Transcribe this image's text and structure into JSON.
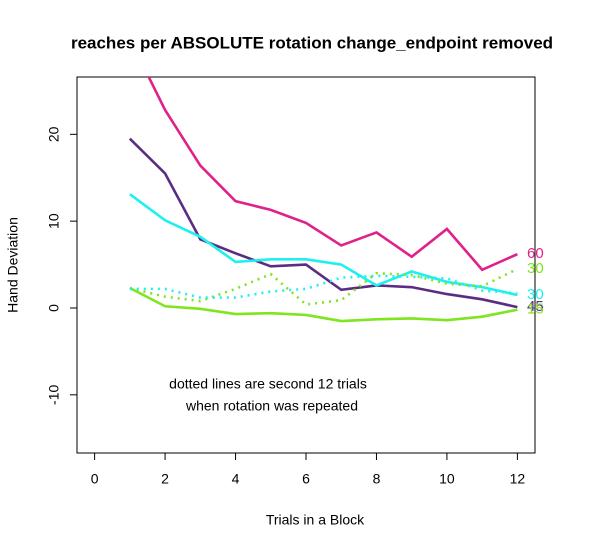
{
  "chart_data": {
    "type": "line",
    "title": "reaches per ABSOLUTE rotation change_endpoint removed",
    "x_label": "Trials in a Block",
    "y_label": "Hand Deviation",
    "x": [
      1,
      2,
      3,
      4,
      5,
      6,
      7,
      8,
      9,
      10,
      11,
      12
    ],
    "series": [
      {
        "name": "60",
        "color": "#e0218a",
        "style": "solid",
        "values": [
          31,
          22.8,
          16.4,
          12.3,
          11.3,
          9.8,
          7.2,
          8.7,
          5.9,
          9.1,
          4.4,
          6.2
        ]
      },
      {
        "name": "45",
        "color": "#5b2c83",
        "style": "solid",
        "values": [
          19.5,
          15.5,
          7.9,
          6.3,
          4.8,
          5.0,
          2.1,
          2.6,
          2.4,
          1.6,
          1.0,
          0.1
        ]
      },
      {
        "name": "30",
        "color": "#1ef0f0",
        "style": "solid",
        "values": [
          13.1,
          10.1,
          8.2,
          5.3,
          5.6,
          5.6,
          5.0,
          2.6,
          4.2,
          3.0,
          2.4,
          1.5
        ]
      },
      {
        "name": "15",
        "color": "#7fe51e",
        "style": "solid",
        "values": [
          2.3,
          0.2,
          -0.1,
          -0.7,
          -0.6,
          -0.8,
          -1.5,
          -1.3,
          -1.2,
          -1.4,
          -1.0,
          -0.2
        ]
      },
      {
        "name": "30",
        "color": "#7fe51e",
        "style": "dotted",
        "values": [
          2.3,
          1.3,
          0.8,
          2.2,
          3.9,
          0.4,
          0.9,
          4.0,
          3.8,
          2.8,
          2.5,
          4.5
        ]
      },
      {
        "color": "#1ef0f0",
        "style": "dotted",
        "values": [
          2.2,
          2.2,
          1.2,
          1.2,
          1.9,
          2.2,
          3.5,
          3.7,
          3.6,
          3.4,
          2.0,
          1.7
        ]
      }
    ],
    "annotations": [
      "dotted lines are second 12 trials",
      "when rotation was repeated"
    ],
    "xlim": [
      -0.5,
      12.5
    ],
    "xticks": [
      0,
      2,
      4,
      6,
      8,
      10,
      12
    ],
    "ylim": [
      -16.7,
      26.6
    ],
    "yticks": [
      -10,
      0,
      10,
      20
    ]
  }
}
